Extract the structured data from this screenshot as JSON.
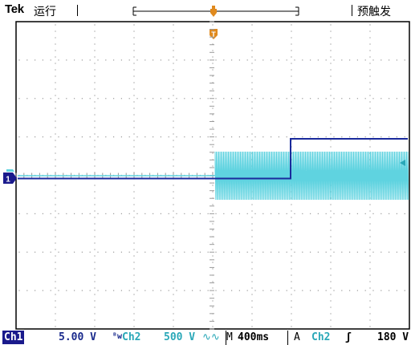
{
  "header": {
    "brand": "Tek",
    "run_status": "运行",
    "trigger_mode": "预触发",
    "trigger_marker": "T"
  },
  "channels": {
    "ch1": {
      "marker": "1",
      "label": "Ch1",
      "scale": "5.00 V",
      "color": "#1a2a9c"
    },
    "ch2": {
      "label": "Ch2",
      "scale": "500 V",
      "coupling_icon": "∿∿",
      "bw_icon": "ᴮw",
      "color": "#5fd3e0"
    }
  },
  "timebase": {
    "prefix": "M",
    "value": "400ms"
  },
  "trigger": {
    "label": "A",
    "source": "Ch2",
    "slope_icon": "ʃ",
    "level": "180 V"
  },
  "grid": {
    "h_divisions": 10,
    "v_divisions": 8
  },
  "colors": {
    "ch1_trace": "#1a2a9c",
    "ch2_trace": "#5fd3e0",
    "trigger_marker": "#e08a1e",
    "grid": "#9a9a9a"
  }
}
